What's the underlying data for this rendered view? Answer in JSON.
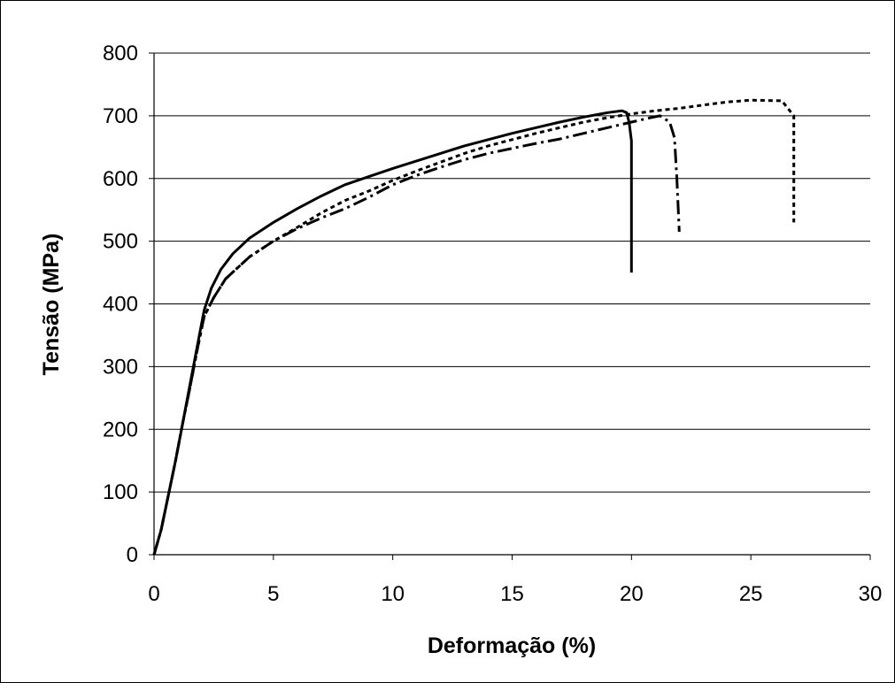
{
  "chart_data": {
    "type": "line",
    "title": "",
    "xlabel": "Deformação (%)",
    "ylabel": "Tensão (MPa)",
    "xlim": [
      0,
      30
    ],
    "ylim": [
      0,
      800
    ],
    "xticks": [
      0,
      5,
      10,
      15,
      20,
      25,
      30
    ],
    "yticks": [
      0,
      100,
      200,
      300,
      400,
      500,
      600,
      700,
      800
    ],
    "grid": "horizontal",
    "legend": "none",
    "series": [
      {
        "style": "solid",
        "points": [
          [
            0,
            0
          ],
          [
            0.3,
            40
          ],
          [
            0.6,
            95
          ],
          [
            0.9,
            150
          ],
          [
            1.2,
            210
          ],
          [
            1.5,
            270
          ],
          [
            1.8,
            330
          ],
          [
            2.1,
            390
          ],
          [
            2.4,
            425
          ],
          [
            2.8,
            455
          ],
          [
            3.3,
            480
          ],
          [
            4,
            505
          ],
          [
            5,
            530
          ],
          [
            6,
            552
          ],
          [
            7,
            572
          ],
          [
            8,
            590
          ],
          [
            9,
            603
          ],
          [
            10,
            616
          ],
          [
            11,
            628
          ],
          [
            12,
            640
          ],
          [
            13,
            652
          ],
          [
            14,
            662
          ],
          [
            15,
            672
          ],
          [
            16,
            681
          ],
          [
            17,
            690
          ],
          [
            18,
            698
          ],
          [
            19,
            705
          ],
          [
            19.6,
            708
          ],
          [
            19.8,
            705
          ],
          [
            19.9,
            690
          ],
          [
            20,
            660
          ],
          [
            20,
            450
          ]
        ]
      },
      {
        "style": "dash-dot",
        "points": [
          [
            0,
            0
          ],
          [
            0.3,
            40
          ],
          [
            0.6,
            95
          ],
          [
            0.9,
            150
          ],
          [
            1.2,
            210
          ],
          [
            1.5,
            265
          ],
          [
            1.8,
            325
          ],
          [
            2.1,
            380
          ],
          [
            2.5,
            410
          ],
          [
            3,
            440
          ],
          [
            4,
            475
          ],
          [
            5,
            500
          ],
          [
            6,
            520
          ],
          [
            7,
            537
          ],
          [
            8,
            552
          ],
          [
            9,
            570
          ],
          [
            10,
            590
          ],
          [
            11,
            605
          ],
          [
            12,
            618
          ],
          [
            13,
            630
          ],
          [
            14,
            640
          ],
          [
            15,
            648
          ],
          [
            16,
            656
          ],
          [
            17,
            663
          ],
          [
            18,
            672
          ],
          [
            19,
            681
          ],
          [
            20,
            690
          ],
          [
            20.8,
            697
          ],
          [
            21.2,
            700
          ],
          [
            21.6,
            690
          ],
          [
            21.8,
            665
          ],
          [
            21.9,
            600
          ],
          [
            22,
            515
          ]
        ]
      },
      {
        "style": "dotted",
        "points": [
          [
            0,
            0
          ],
          [
            0.3,
            40
          ],
          [
            0.6,
            95
          ],
          [
            0.9,
            150
          ],
          [
            1.2,
            210
          ],
          [
            1.5,
            265
          ],
          [
            1.8,
            325
          ],
          [
            2.1,
            380
          ],
          [
            2.5,
            410
          ],
          [
            3,
            440
          ],
          [
            4,
            475
          ],
          [
            5,
            500
          ],
          [
            6,
            522
          ],
          [
            7,
            545
          ],
          [
            8,
            565
          ],
          [
            9,
            580
          ],
          [
            10,
            597
          ],
          [
            11,
            612
          ],
          [
            12,
            626
          ],
          [
            13,
            640
          ],
          [
            14,
            652
          ],
          [
            15,
            662
          ],
          [
            16,
            672
          ],
          [
            17,
            681
          ],
          [
            18,
            690
          ],
          [
            19,
            697
          ],
          [
            20,
            703
          ],
          [
            21,
            708
          ],
          [
            22,
            712
          ],
          [
            23,
            717
          ],
          [
            24,
            722
          ],
          [
            25,
            725
          ],
          [
            26.3,
            724
          ],
          [
            26.8,
            700
          ],
          [
            26.8,
            530
          ]
        ]
      }
    ]
  }
}
